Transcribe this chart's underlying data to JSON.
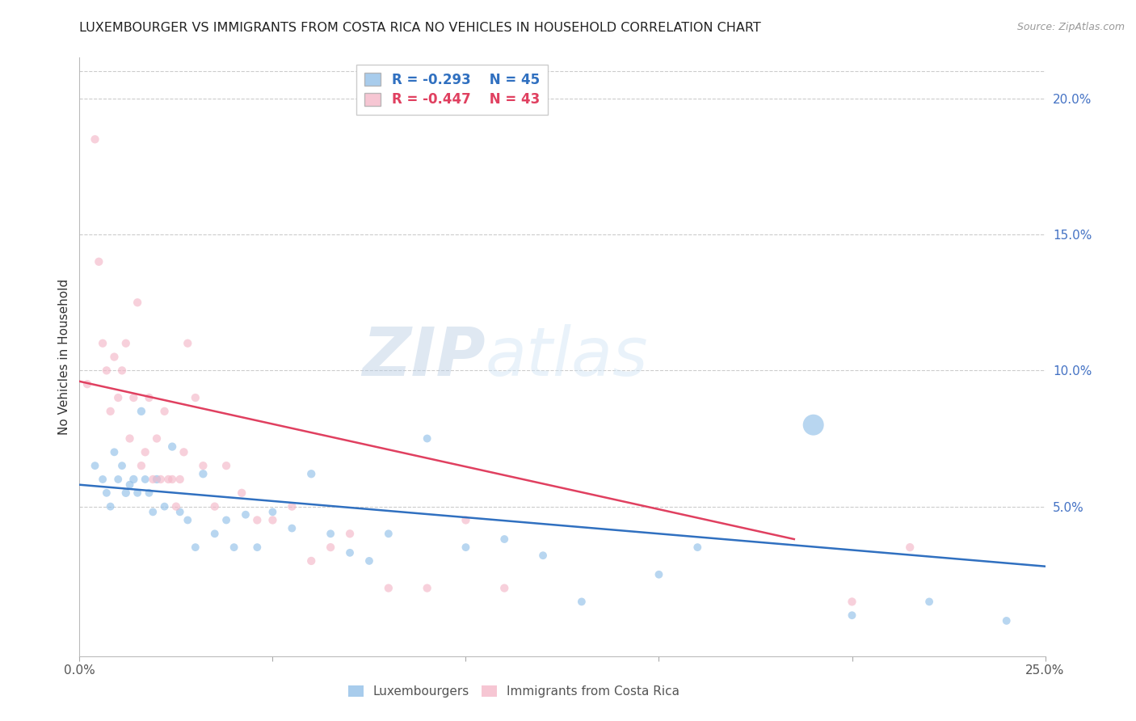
{
  "title": "LUXEMBOURGER VS IMMIGRANTS FROM COSTA RICA NO VEHICLES IN HOUSEHOLD CORRELATION CHART",
  "source": "Source: ZipAtlas.com",
  "ylabel": "No Vehicles in Household",
  "xlim": [
    0.0,
    0.25
  ],
  "ylim": [
    -0.005,
    0.215
  ],
  "xtick_positions": [
    0.0,
    0.05,
    0.1,
    0.15,
    0.2,
    0.25
  ],
  "xtick_labels": [
    "0.0%",
    "",
    "",
    "",
    "",
    "25.0%"
  ],
  "yticks_right": [
    0.05,
    0.1,
    0.15,
    0.2
  ],
  "ytick_labels_right": [
    "5.0%",
    "10.0%",
    "15.0%",
    "20.0%"
  ],
  "blue_color": "#92c0e8",
  "pink_color": "#f4b8c8",
  "blue_line_color": "#3070c0",
  "pink_line_color": "#e04060",
  "legend_r1": "R = -0.293",
  "legend_n1": "N = 45",
  "legend_r2": "R = -0.447",
  "legend_n2": "N = 43",
  "label1": "Luxembourgers",
  "label2": "Immigrants from Costa Rica",
  "blue_line_x": [
    0.0,
    0.25
  ],
  "blue_line_y": [
    0.058,
    0.028
  ],
  "pink_line_x": [
    0.0,
    0.185
  ],
  "pink_line_y": [
    0.096,
    0.038
  ],
  "blue_scatter_x": [
    0.004,
    0.006,
    0.007,
    0.008,
    0.009,
    0.01,
    0.011,
    0.012,
    0.013,
    0.014,
    0.015,
    0.016,
    0.017,
    0.018,
    0.019,
    0.02,
    0.022,
    0.024,
    0.026,
    0.028,
    0.03,
    0.032,
    0.035,
    0.038,
    0.04,
    0.043,
    0.046,
    0.05,
    0.055,
    0.06,
    0.065,
    0.07,
    0.075,
    0.08,
    0.09,
    0.1,
    0.11,
    0.12,
    0.13,
    0.15,
    0.16,
    0.2,
    0.22,
    0.24,
    0.19
  ],
  "blue_scatter_y": [
    0.065,
    0.06,
    0.055,
    0.05,
    0.07,
    0.06,
    0.065,
    0.055,
    0.058,
    0.06,
    0.055,
    0.085,
    0.06,
    0.055,
    0.048,
    0.06,
    0.05,
    0.072,
    0.048,
    0.045,
    0.035,
    0.062,
    0.04,
    0.045,
    0.035,
    0.047,
    0.035,
    0.048,
    0.042,
    0.062,
    0.04,
    0.033,
    0.03,
    0.04,
    0.075,
    0.035,
    0.038,
    0.032,
    0.015,
    0.025,
    0.035,
    0.01,
    0.015,
    0.008,
    0.08
  ],
  "blue_scatter_s": [
    50,
    50,
    50,
    50,
    50,
    50,
    50,
    55,
    50,
    55,
    50,
    55,
    50,
    50,
    50,
    55,
    50,
    55,
    50,
    50,
    50,
    55,
    50,
    50,
    50,
    50,
    50,
    50,
    50,
    55,
    50,
    50,
    50,
    50,
    50,
    50,
    50,
    50,
    50,
    50,
    50,
    50,
    50,
    50,
    350
  ],
  "pink_scatter_x": [
    0.002,
    0.004,
    0.005,
    0.006,
    0.007,
    0.008,
    0.009,
    0.01,
    0.011,
    0.012,
    0.013,
    0.014,
    0.015,
    0.016,
    0.017,
    0.018,
    0.019,
    0.02,
    0.021,
    0.022,
    0.023,
    0.024,
    0.025,
    0.026,
    0.027,
    0.028,
    0.03,
    0.032,
    0.035,
    0.038,
    0.042,
    0.046,
    0.05,
    0.055,
    0.06,
    0.065,
    0.07,
    0.08,
    0.09,
    0.1,
    0.11,
    0.2,
    0.215
  ],
  "pink_scatter_y": [
    0.095,
    0.185,
    0.14,
    0.11,
    0.1,
    0.085,
    0.105,
    0.09,
    0.1,
    0.11,
    0.075,
    0.09,
    0.125,
    0.065,
    0.07,
    0.09,
    0.06,
    0.075,
    0.06,
    0.085,
    0.06,
    0.06,
    0.05,
    0.06,
    0.07,
    0.11,
    0.09,
    0.065,
    0.05,
    0.065,
    0.055,
    0.045,
    0.045,
    0.05,
    0.03,
    0.035,
    0.04,
    0.02,
    0.02,
    0.045,
    0.02,
    0.015,
    0.035
  ],
  "pink_scatter_s": [
    55,
    55,
    55,
    55,
    55,
    55,
    55,
    55,
    55,
    55,
    55,
    55,
    55,
    55,
    55,
    55,
    55,
    55,
    55,
    55,
    55,
    55,
    55,
    55,
    55,
    55,
    55,
    55,
    55,
    55,
    55,
    55,
    55,
    55,
    55,
    55,
    55,
    55,
    55,
    55,
    55,
    55,
    55
  ]
}
